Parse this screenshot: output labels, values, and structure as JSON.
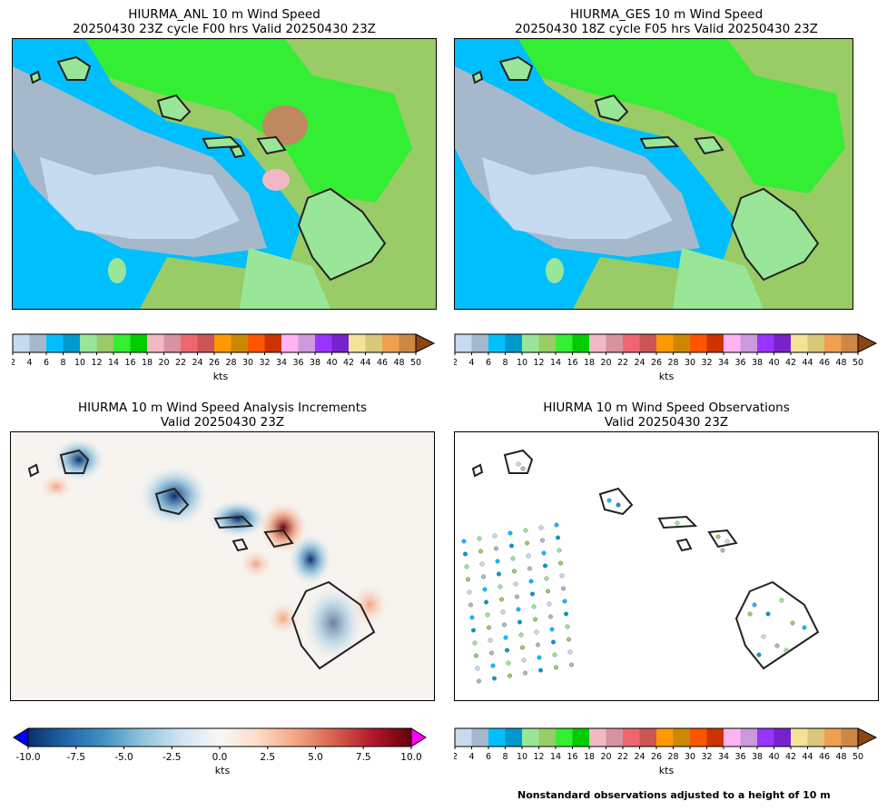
{
  "panels": [
    {
      "title_line1": "HIURMA_ANL 10 m Wind Speed",
      "title_line2": "20250430 23Z cycle F00 hrs Valid 20250430 23Z"
    },
    {
      "title_line1": "HIURMA_GES 10 m Wind Speed",
      "title_line2": "20250430 18Z cycle F05 hrs Valid 20250430 23Z"
    },
    {
      "title_line1": "HIURMA 10 m Wind Speed Analysis Increments",
      "title_line2": "Valid 20250430 23Z"
    },
    {
      "title_line1": "HIURMA 10 m Wind Speed Observations",
      "title_line2": "Valid 20250430 23Z"
    }
  ],
  "speed_colorbar": {
    "label": "kts",
    "ticks": [
      "2",
      "4",
      "6",
      "8",
      "10",
      "12",
      "14",
      "16",
      "18",
      "20",
      "22",
      "24",
      "26",
      "28",
      "30",
      "32",
      "34",
      "36",
      "38",
      "40",
      "42",
      "44",
      "46",
      "48",
      "50"
    ],
    "colors": [
      "#c6dbef",
      "#a6b9cc",
      "#00bfff",
      "#0099cc",
      "#99e699",
      "#99cc66",
      "#33ee33",
      "#00cc00",
      "#f2b8c6",
      "#d9929f",
      "#ee6670",
      "#cc5555",
      "#ff9900",
      "#cc8800",
      "#ff5500",
      "#cc3300",
      "#ffb3f0",
      "#cc99dd",
      "#9933ff",
      "#7722cc",
      "#f2e399",
      "#d9c77a",
      "#f0a050",
      "#cc8844"
    ],
    "extend_color": "#8b4513"
  },
  "increment_colorbar": {
    "label": "kts",
    "ticks": [
      "-10.0",
      "-7.5",
      "-5.0",
      "-2.5",
      "0.0",
      "2.5",
      "5.0",
      "7.5",
      "10.0"
    ],
    "under_color": "#0000ff",
    "over_color": "#ff00ff"
  },
  "note": "Nonstandard observations adjusted to a height of 10 m",
  "colors": {
    "land_outline": "#222222"
  }
}
